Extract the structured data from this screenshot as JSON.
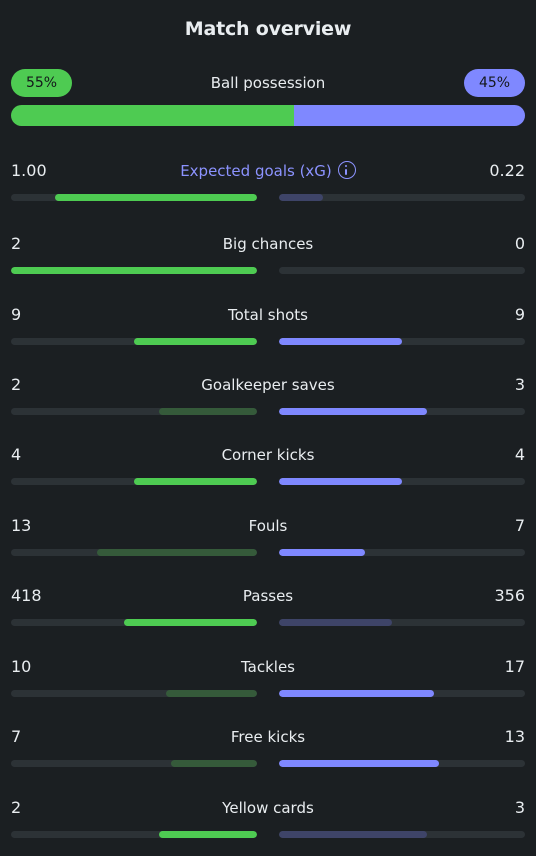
{
  "title": "Match overview",
  "possession": {
    "label": "Ball possession",
    "home": "55%",
    "away": "45%",
    "home_fraction": 0.55,
    "away_fraction": 0.45
  },
  "colors": {
    "home": "#4ecb52",
    "home_dim": "#355a3a",
    "away": "#7f88ff",
    "away_dim": "#3e4468",
    "accent": "#8c93ff",
    "background": "#1b1f22",
    "track": "#2c3236"
  },
  "stats": [
    {
      "label": "Expected goals (xG)",
      "home": "1.00",
      "away": "0.22",
      "home_fill": 0.82,
      "away_fill": 0.18,
      "home_strong": true,
      "away_strong": false,
      "accent": true,
      "info_icon": true
    },
    {
      "label": "Big chances",
      "home": "2",
      "away": "0",
      "home_fill": 1.0,
      "away_fill": 0.0,
      "home_strong": true,
      "away_strong": false
    },
    {
      "label": "Total shots",
      "home": "9",
      "away": "9",
      "home_fill": 0.5,
      "away_fill": 0.5,
      "home_strong": true,
      "away_strong": true
    },
    {
      "label": "Goalkeeper saves",
      "home": "2",
      "away": "3",
      "home_fill": 0.4,
      "away_fill": 0.6,
      "home_strong": false,
      "away_strong": true
    },
    {
      "label": "Corner kicks",
      "home": "4",
      "away": "4",
      "home_fill": 0.5,
      "away_fill": 0.5,
      "home_strong": true,
      "away_strong": true
    },
    {
      "label": "Fouls",
      "home": "13",
      "away": "7",
      "home_fill": 0.65,
      "away_fill": 0.35,
      "home_strong": false,
      "away_strong": true
    },
    {
      "label": "Passes",
      "home": "418",
      "away": "356",
      "home_fill": 0.54,
      "away_fill": 0.46,
      "home_strong": true,
      "away_strong": false
    },
    {
      "label": "Tackles",
      "home": "10",
      "away": "17",
      "home_fill": 0.37,
      "away_fill": 0.63,
      "home_strong": false,
      "away_strong": true
    },
    {
      "label": "Free kicks",
      "home": "7",
      "away": "13",
      "home_fill": 0.35,
      "away_fill": 0.65,
      "home_strong": false,
      "away_strong": true
    },
    {
      "label": "Yellow cards",
      "home": "2",
      "away": "3",
      "home_fill": 0.4,
      "away_fill": 0.6,
      "home_strong": true,
      "away_strong": false
    }
  ]
}
